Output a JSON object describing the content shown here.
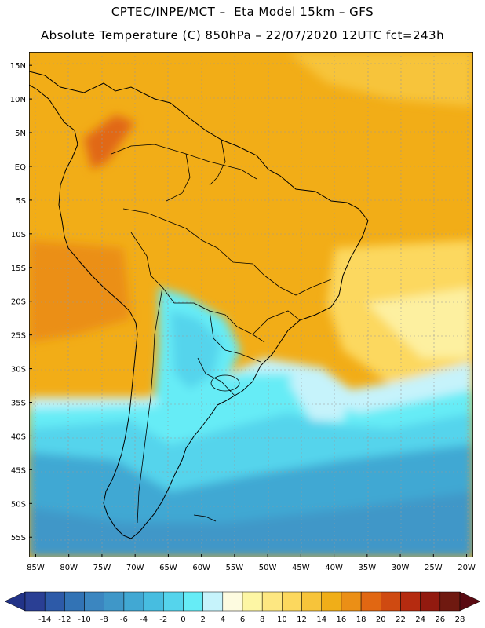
{
  "header": {
    "line1": "CPTEC/INPE/MCT –  Eta Model 15km – GFS",
    "line2": "Absolute Temperature (C) 850hPa – 22/07/2020 12UTC fct=243h"
  },
  "axes": {
    "lat_labels": [
      "15N",
      "10N",
      "5N",
      "EQ",
      "5S",
      "10S",
      "15S",
      "20S",
      "25S",
      "30S",
      "35S",
      "40S",
      "45S",
      "50S",
      "55S"
    ],
    "lat_values": [
      15,
      10,
      5,
      0,
      -5,
      -10,
      -15,
      -20,
      -25,
      -30,
      -35,
      -40,
      -45,
      -50,
      -55
    ],
    "lon_labels": [
      "85W",
      "80W",
      "75W",
      "70W",
      "65W",
      "60W",
      "55W",
      "50W",
      "45W",
      "40W",
      "35W",
      "30W",
      "25W",
      "20W"
    ],
    "lon_values": [
      -85,
      -80,
      -75,
      -70,
      -65,
      -60,
      -55,
      -50,
      -45,
      -40,
      -35,
      -30,
      -25,
      -20
    ],
    "lon_range": [
      -86,
      -19
    ],
    "lat_range": [
      -58,
      17
    ]
  },
  "colorbar": {
    "labels": [
      "-14",
      "-12",
      "-10",
      "-8",
      "-6",
      "-4",
      "-2",
      "0",
      "2",
      "4",
      "6",
      "8",
      "10",
      "12",
      "14",
      "16",
      "18",
      "20",
      "22",
      "24",
      "26",
      "28"
    ],
    "colors": [
      "#2a3f94",
      "#2d5aa8",
      "#3273b5",
      "#3b86c0",
      "#3f97c8",
      "#41a8d3",
      "#47bde0",
      "#55d4ec",
      "#66ecf6",
      "#c6f3fb",
      "#fdfbe0",
      "#fdf6a4",
      "#fde781",
      "#fcd85e",
      "#f7c43a",
      "#f0ae18",
      "#eb8f16",
      "#e16712",
      "#cf4a11",
      "#b52b10",
      "#921a0f",
      "#6f1910"
    ],
    "left_arrow_color": "#223388",
    "right_arrow_color": "#5a0a12"
  },
  "regions": [
    {
      "name": "warm-field",
      "color": "#f2ad17"
    },
    {
      "name": "east-coast-yellow",
      "color": "#fcd85e"
    },
    {
      "name": "pale-yellow",
      "color": "#fdf0a0"
    },
    {
      "name": "cold-front-band",
      "color": "#c6f3fb"
    },
    {
      "name": "cyan-band",
      "color": "#66ecf6"
    },
    {
      "name": "southern-ocean",
      "color": "#41a8d3"
    }
  ]
}
